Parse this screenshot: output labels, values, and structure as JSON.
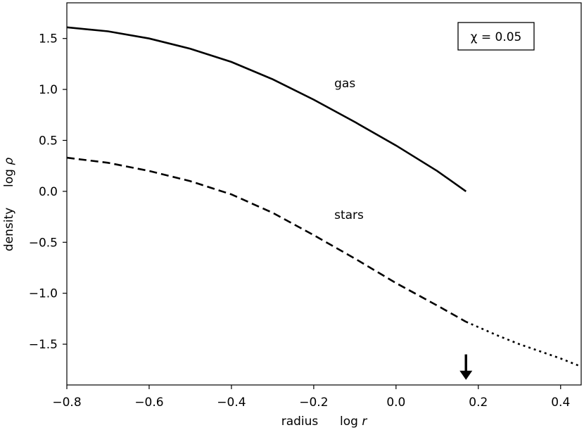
{
  "chart_data": {
    "type": "line",
    "xlabel": "radius",
    "xlabel_symbol": "log r",
    "ylabel": "density",
    "ylabel_symbol": "log ρ",
    "xlim": [
      -0.8,
      0.45
    ],
    "ylim": [
      -1.9,
      1.85
    ],
    "xticks": [
      -0.8,
      -0.6,
      -0.4,
      -0.2,
      0.0,
      0.2,
      0.4
    ],
    "xtick_labels": [
      "−0.8",
      "−0.6",
      "−0.4",
      "−0.2",
      "0.0",
      "0.2",
      "0.4"
    ],
    "yticks": [
      1.5,
      1.0,
      0.5,
      0.0,
      -0.5,
      -1.0,
      -1.5
    ],
    "ytick_labels": [
      "1.5",
      "1.0",
      "0.5",
      "0.0",
      "−0.5",
      "−1.0",
      "−1.5"
    ],
    "grid": false,
    "legend_box": "χ = 0.05",
    "series": [
      {
        "name": "gas",
        "style": "solid",
        "x": [
          -0.8,
          -0.7,
          -0.6,
          -0.5,
          -0.4,
          -0.3,
          -0.2,
          -0.1,
          0.0,
          0.1,
          0.17
        ],
        "y": [
          1.61,
          1.57,
          1.5,
          1.4,
          1.27,
          1.1,
          0.9,
          0.68,
          0.45,
          0.2,
          0.0
        ]
      },
      {
        "name": "stars",
        "style": "dashed",
        "x": [
          -0.8,
          -0.7,
          -0.6,
          -0.5,
          -0.4,
          -0.3,
          -0.2,
          -0.1,
          0.0,
          0.1,
          0.17
        ],
        "y": [
          0.33,
          0.28,
          0.2,
          0.1,
          -0.03,
          -0.21,
          -0.43,
          -0.66,
          -0.9,
          -1.12,
          -1.28
        ]
      },
      {
        "name": "",
        "style": "dotted",
        "x": [
          0.17,
          0.25,
          0.3,
          0.35,
          0.4,
          0.45
        ],
        "y": [
          -1.28,
          -1.42,
          -1.5,
          -1.57,
          -1.64,
          -1.72
        ]
      }
    ],
    "annotations": [
      {
        "text": "gas",
        "x": -0.15,
        "y": 1.02
      },
      {
        "text": "stars",
        "x": -0.15,
        "y": -0.27
      }
    ],
    "arrow": {
      "x": 0.17,
      "y_top": -1.6,
      "y_bottom": -1.85
    }
  }
}
